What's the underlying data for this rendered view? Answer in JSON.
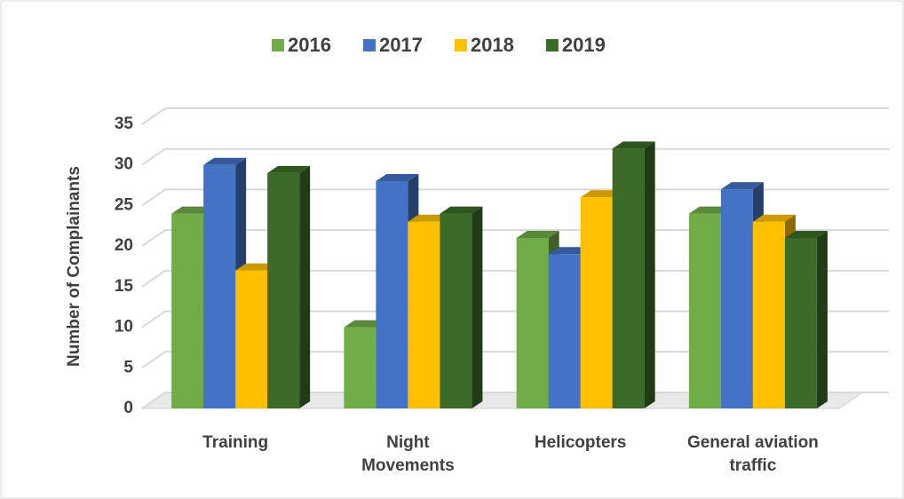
{
  "chart_data": {
    "type": "bar3d",
    "y_label": "Number of Complainants",
    "categories": [
      "Training",
      "Night Movements",
      "Helicopters",
      "General aviation traffic"
    ],
    "series": [
      {
        "name": "2016",
        "color": "#70ad47",
        "values": [
          24,
          10,
          21,
          24
        ]
      },
      {
        "name": "2017",
        "color": "#4472c4",
        "values": [
          30,
          28,
          19,
          27
        ]
      },
      {
        "name": "2018",
        "color": "#ffc000",
        "values": [
          17,
          23,
          26,
          23
        ]
      },
      {
        "name": "2019",
        "color": "#3b6b26",
        "values": [
          29,
          24,
          32,
          21
        ]
      }
    ],
    "ylim": [
      0,
      35
    ],
    "yticks": [
      0,
      5,
      10,
      15,
      20,
      25,
      30,
      35
    ],
    "grid": true,
    "legend": "top"
  }
}
